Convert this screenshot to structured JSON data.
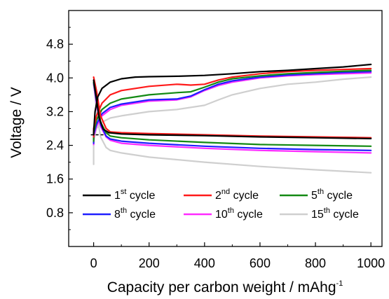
{
  "chart_data": {
    "type": "line",
    "xlabel": "Capacity per carbon weight / mAhg",
    "xlabel_superscript": "-1",
    "ylabel": "Voltage / V",
    "xlim": [
      -90,
      1040
    ],
    "ylim": [
      0,
      5.6
    ],
    "x_ticks": [
      0,
      200,
      400,
      600,
      800,
      1000
    ],
    "x_tick_labels": [
      "0",
      "200",
      "400",
      "600",
      "800",
      "1000"
    ],
    "y_ticks": [
      0.8,
      1.6,
      2.4,
      3.2,
      4.0,
      4.8
    ],
    "y_tick_labels": [
      "0.8",
      "1.6",
      "2.4",
      "3.2",
      "4.0",
      "4.8"
    ],
    "grid": false,
    "legend": {
      "placement": "bottom",
      "columns": 3,
      "entries": [
        {
          "prefix": "1",
          "sup": "st",
          "suffix": " cycle",
          "color": "#000000"
        },
        {
          "prefix": "2",
          "sup": "nd",
          "suffix": " cycle",
          "color": "#ff1a1a"
        },
        {
          "prefix": "5",
          "sup": "th",
          "suffix": " cycle",
          "color": "#138a13"
        },
        {
          "prefix": "8",
          "sup": "th",
          "suffix": " cycle",
          "color": "#1f1fff"
        },
        {
          "prefix": "10",
          "sup": "th",
          "suffix": " cycle",
          "color": "#ff2bff"
        },
        {
          "prefix": "15",
          "sup": "th",
          "suffix": " cycle",
          "color": "#cfcfcf"
        }
      ]
    },
    "series": [
      {
        "color": "#cfcfcf",
        "charge": [
          [
            0,
            2.5
          ],
          [
            10,
            2.8
          ],
          [
            30,
            2.95
          ],
          [
            60,
            3.05
          ],
          [
            100,
            3.1
          ],
          [
            200,
            3.2
          ],
          [
            300,
            3.25
          ],
          [
            400,
            3.35
          ],
          [
            450,
            3.48
          ],
          [
            500,
            3.6
          ],
          [
            600,
            3.75
          ],
          [
            700,
            3.85
          ],
          [
            800,
            3.9
          ],
          [
            900,
            3.97
          ],
          [
            1000,
            4.02
          ]
        ],
        "discharge": [
          [
            0,
            3.95
          ],
          [
            10,
            3.2
          ],
          [
            25,
            2.6
          ],
          [
            45,
            2.35
          ],
          [
            60,
            2.28
          ],
          [
            100,
            2.22
          ],
          [
            200,
            2.12
          ],
          [
            400,
            2.0
          ],
          [
            600,
            1.9
          ],
          [
            800,
            1.82
          ],
          [
            1000,
            1.75
          ]
        ],
        "start": [
          [
            0,
            1.95
          ],
          [
            0,
            2.5
          ]
        ]
      },
      {
        "color": "#ff2bff",
        "charge": [
          [
            0,
            2.6
          ],
          [
            10,
            2.85
          ],
          [
            30,
            3.1
          ],
          [
            60,
            3.25
          ],
          [
            100,
            3.35
          ],
          [
            200,
            3.45
          ],
          [
            300,
            3.48
          ],
          [
            350,
            3.55
          ],
          [
            400,
            3.7
          ],
          [
            450,
            3.82
          ],
          [
            500,
            3.9
          ],
          [
            600,
            4.0
          ],
          [
            700,
            4.05
          ],
          [
            800,
            4.08
          ],
          [
            900,
            4.1
          ],
          [
            1000,
            4.12
          ]
        ],
        "discharge": [
          [
            0,
            3.85
          ],
          [
            10,
            3.4
          ],
          [
            25,
            2.85
          ],
          [
            45,
            2.6
          ],
          [
            60,
            2.52
          ],
          [
            100,
            2.45
          ],
          [
            200,
            2.4
          ],
          [
            400,
            2.33
          ],
          [
            600,
            2.28
          ],
          [
            800,
            2.25
          ],
          [
            1000,
            2.22
          ]
        ],
        "start": [
          [
            0,
            2.42
          ],
          [
            0,
            2.6
          ]
        ]
      },
      {
        "color": "#1f1fff",
        "charge": [
          [
            0,
            2.65
          ],
          [
            10,
            2.9
          ],
          [
            30,
            3.15
          ],
          [
            60,
            3.3
          ],
          [
            100,
            3.38
          ],
          [
            200,
            3.48
          ],
          [
            300,
            3.5
          ],
          [
            350,
            3.57
          ],
          [
            400,
            3.72
          ],
          [
            450,
            3.85
          ],
          [
            500,
            3.93
          ],
          [
            600,
            4.02
          ],
          [
            700,
            4.07
          ],
          [
            800,
            4.1
          ],
          [
            900,
            4.13
          ],
          [
            1000,
            4.15
          ]
        ],
        "discharge": [
          [
            0,
            3.88
          ],
          [
            10,
            3.45
          ],
          [
            25,
            2.9
          ],
          [
            45,
            2.62
          ],
          [
            60,
            2.55
          ],
          [
            100,
            2.5
          ],
          [
            200,
            2.45
          ],
          [
            400,
            2.38
          ],
          [
            600,
            2.33
          ],
          [
            800,
            2.3
          ],
          [
            1000,
            2.28
          ]
        ],
        "start": [
          [
            0,
            2.45
          ],
          [
            0,
            2.65
          ]
        ]
      },
      {
        "color": "#138a13",
        "charge": [
          [
            0,
            2.7
          ],
          [
            10,
            3.0
          ],
          [
            30,
            3.25
          ],
          [
            60,
            3.4
          ],
          [
            100,
            3.5
          ],
          [
            200,
            3.6
          ],
          [
            300,
            3.65
          ],
          [
            350,
            3.67
          ],
          [
            400,
            3.78
          ],
          [
            450,
            3.9
          ],
          [
            500,
            3.98
          ],
          [
            600,
            4.05
          ],
          [
            700,
            4.1
          ],
          [
            800,
            4.13
          ],
          [
            900,
            4.16
          ],
          [
            1000,
            4.18
          ]
        ],
        "discharge": [
          [
            0,
            3.9
          ],
          [
            10,
            3.5
          ],
          [
            25,
            2.95
          ],
          [
            45,
            2.7
          ],
          [
            60,
            2.62
          ],
          [
            100,
            2.58
          ],
          [
            200,
            2.53
          ],
          [
            400,
            2.47
          ],
          [
            600,
            2.42
          ],
          [
            800,
            2.4
          ],
          [
            1000,
            2.38
          ]
        ],
        "start": [
          [
            0,
            2.5
          ],
          [
            0,
            2.7
          ]
        ]
      },
      {
        "color": "#ff1a1a",
        "charge": [
          [
            0,
            2.8
          ],
          [
            10,
            3.1
          ],
          [
            30,
            3.4
          ],
          [
            60,
            3.6
          ],
          [
            100,
            3.7
          ],
          [
            200,
            3.8
          ],
          [
            300,
            3.85
          ],
          [
            350,
            3.83
          ],
          [
            400,
            3.85
          ],
          [
            450,
            3.95
          ],
          [
            500,
            4.02
          ],
          [
            600,
            4.1
          ],
          [
            700,
            4.15
          ],
          [
            800,
            4.18
          ],
          [
            900,
            4.2
          ],
          [
            1000,
            4.22
          ]
        ],
        "discharge": [
          [
            0,
            4.02
          ],
          [
            10,
            3.7
          ],
          [
            25,
            3.1
          ],
          [
            45,
            2.8
          ],
          [
            60,
            2.72
          ],
          [
            100,
            2.7
          ],
          [
            200,
            2.68
          ],
          [
            400,
            2.65
          ],
          [
            600,
            2.62
          ],
          [
            800,
            2.6
          ],
          [
            1000,
            2.58
          ]
        ],
        "start": [
          [
            0,
            2.6
          ],
          [
            0,
            2.8
          ]
        ]
      },
      {
        "color": "#000000",
        "charge": [
          [
            0,
            2.7
          ],
          [
            5,
            3.2
          ],
          [
            15,
            3.55
          ],
          [
            30,
            3.75
          ],
          [
            60,
            3.9
          ],
          [
            100,
            3.98
          ],
          [
            150,
            4.02
          ],
          [
            200,
            4.03
          ],
          [
            300,
            4.04
          ],
          [
            400,
            4.06
          ],
          [
            500,
            4.1
          ],
          [
            600,
            4.15
          ],
          [
            700,
            4.18
          ],
          [
            800,
            4.22
          ],
          [
            900,
            4.26
          ],
          [
            1000,
            4.32
          ]
        ],
        "discharge": [
          [
            0,
            3.95
          ],
          [
            8,
            3.6
          ],
          [
            20,
            3.05
          ],
          [
            35,
            2.78
          ],
          [
            55,
            2.7
          ],
          [
            100,
            2.67
          ],
          [
            200,
            2.65
          ],
          [
            400,
            2.63
          ],
          [
            600,
            2.6
          ],
          [
            800,
            2.58
          ],
          [
            1000,
            2.56
          ]
        ],
        "start": [
          [
            0,
            2.65
          ],
          [
            0,
            2.7
          ]
        ],
        "dashed_start": [
          [
            -10,
            2.65
          ],
          [
            40,
            2.65
          ]
        ]
      }
    ]
  }
}
